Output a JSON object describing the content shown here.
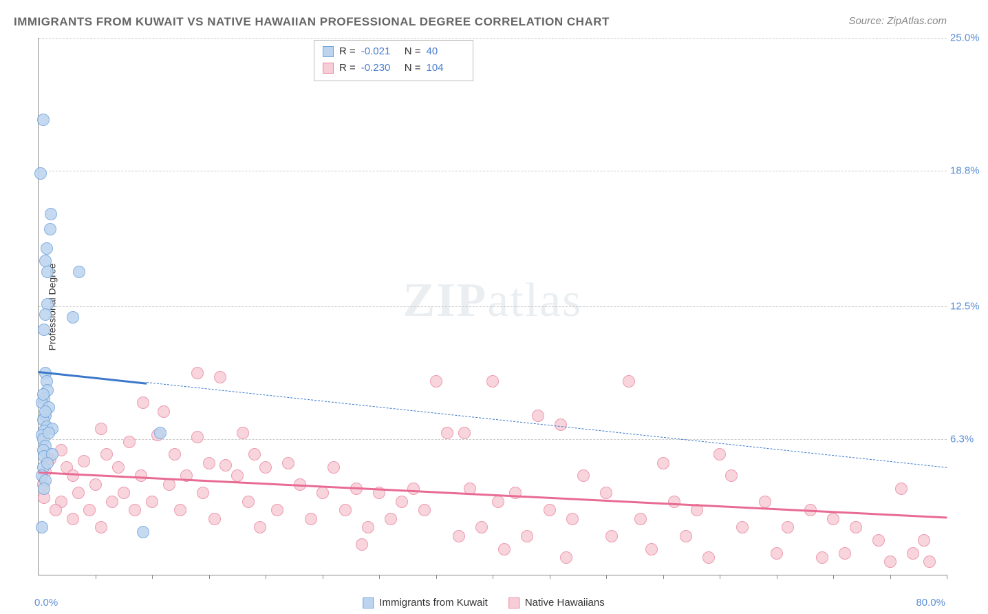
{
  "title": "IMMIGRANTS FROM KUWAIT VS NATIVE HAWAIIAN PROFESSIONAL DEGREE CORRELATION CHART",
  "source": "Source: ZipAtlas.com",
  "watermark_part1": "ZIP",
  "watermark_part2": "atlas",
  "chart": {
    "type": "scatter",
    "y_axis_title": "Professional Degree",
    "xlim": [
      0,
      80
    ],
    "ylim": [
      0,
      25
    ],
    "x_origin_label": "0.0%",
    "x_max_label": "80.0%",
    "y_ticks": [
      {
        "v": 6.3,
        "label": "6.3%"
      },
      {
        "v": 12.5,
        "label": "12.5%"
      },
      {
        "v": 18.8,
        "label": "18.8%"
      },
      {
        "v": 25.0,
        "label": "25.0%"
      }
    ],
    "x_tick_step": 5,
    "background_color": "#ffffff",
    "grid_color": "#cccccc",
    "axis_color": "#888888",
    "label_color": "#5b8dd6",
    "marker_radius": 9,
    "marker_stroke_width": 1.5,
    "series": [
      {
        "name": "Immigrants from Kuwait",
        "fill": "#bcd4ee",
        "stroke": "#6fa3dd",
        "R": "-0.021",
        "N": "40",
        "trend": {
          "color": "#3b78c9",
          "solid_width": 3,
          "dash_width": 1.5,
          "solid_until_x": 9.5,
          "y_at_x0": 9.5,
          "y_at_xmax": 5.0
        },
        "points": [
          [
            0.4,
            21.2
          ],
          [
            0.2,
            18.7
          ],
          [
            1.1,
            16.8
          ],
          [
            1.0,
            16.1
          ],
          [
            0.7,
            15.2
          ],
          [
            0.6,
            14.6
          ],
          [
            0.8,
            14.1
          ],
          [
            3.6,
            14.1
          ],
          [
            0.8,
            12.6
          ],
          [
            0.6,
            12.1
          ],
          [
            3.0,
            12.0
          ],
          [
            0.5,
            11.4
          ],
          [
            0.6,
            9.4
          ],
          [
            0.7,
            9.0
          ],
          [
            0.8,
            8.6
          ],
          [
            0.5,
            8.2
          ],
          [
            0.3,
            8.0
          ],
          [
            0.9,
            7.8
          ],
          [
            0.6,
            7.4
          ],
          [
            0.4,
            7.2
          ],
          [
            0.7,
            6.9
          ],
          [
            1.2,
            6.8
          ],
          [
            0.5,
            6.7
          ],
          [
            0.3,
            6.5
          ],
          [
            0.4,
            6.3
          ],
          [
            0.9,
            6.6
          ],
          [
            10.7,
            6.6
          ],
          [
            0.6,
            6.0
          ],
          [
            0.4,
            5.8
          ],
          [
            0.5,
            5.5
          ],
          [
            1.2,
            5.6
          ],
          [
            0.4,
            5.0
          ],
          [
            0.3,
            4.6
          ],
          [
            0.6,
            4.4
          ],
          [
            0.5,
            4.0
          ],
          [
            0.3,
            2.2
          ],
          [
            9.2,
            2.0
          ],
          [
            0.4,
            8.4
          ],
          [
            0.6,
            7.6
          ],
          [
            0.8,
            5.2
          ]
        ]
      },
      {
        "name": "Native Hawaiians",
        "fill": "#f7cdd7",
        "stroke": "#e98aa4",
        "R": "-0.230",
        "N": "104",
        "trend": {
          "color": "#e86b94",
          "solid_width": 3,
          "dash_width": 0,
          "solid_until_x": 80,
          "y_at_x0": 4.8,
          "y_at_xmax": 2.7
        },
        "points": [
          [
            14.0,
            9.4
          ],
          [
            16.0,
            9.2
          ],
          [
            35.0,
            9.0
          ],
          [
            40.0,
            9.0
          ],
          [
            52.0,
            9.0
          ],
          [
            9.2,
            8.0
          ],
          [
            11.0,
            7.6
          ],
          [
            44.0,
            7.4
          ],
          [
            5.5,
            6.8
          ],
          [
            18.0,
            6.6
          ],
          [
            36.0,
            6.6
          ],
          [
            37.5,
            6.6
          ],
          [
            10.5,
            6.5
          ],
          [
            14.0,
            6.4
          ],
          [
            8.0,
            6.2
          ],
          [
            46.0,
            7.0
          ],
          [
            2.0,
            5.8
          ],
          [
            6.0,
            5.6
          ],
          [
            12.0,
            5.6
          ],
          [
            19.0,
            5.6
          ],
          [
            1.0,
            5.4
          ],
          [
            4.0,
            5.3
          ],
          [
            15.0,
            5.2
          ],
          [
            22.0,
            5.2
          ],
          [
            60.0,
            5.6
          ],
          [
            16.5,
            5.1
          ],
          [
            2.5,
            5.0
          ],
          [
            7.0,
            5.0
          ],
          [
            20.0,
            5.0
          ],
          [
            26.0,
            5.0
          ],
          [
            55.0,
            5.2
          ],
          [
            3.0,
            4.6
          ],
          [
            9.0,
            4.6
          ],
          [
            13.0,
            4.6
          ],
          [
            17.5,
            4.6
          ],
          [
            48.0,
            4.6
          ],
          [
            61.0,
            4.6
          ],
          [
            5.0,
            4.2
          ],
          [
            11.5,
            4.2
          ],
          [
            23.0,
            4.2
          ],
          [
            28.0,
            4.0
          ],
          [
            33.0,
            4.0
          ],
          [
            38.0,
            4.0
          ],
          [
            76.0,
            4.0
          ],
          [
            3.5,
            3.8
          ],
          [
            7.5,
            3.8
          ],
          [
            14.5,
            3.8
          ],
          [
            25.0,
            3.8
          ],
          [
            30.0,
            3.8
          ],
          [
            42.0,
            3.8
          ],
          [
            50.0,
            3.8
          ],
          [
            2.0,
            3.4
          ],
          [
            6.5,
            3.4
          ],
          [
            10.0,
            3.4
          ],
          [
            18.5,
            3.4
          ],
          [
            32.0,
            3.4
          ],
          [
            40.5,
            3.4
          ],
          [
            56.0,
            3.4
          ],
          [
            64.0,
            3.4
          ],
          [
            1.5,
            3.0
          ],
          [
            4.5,
            3.0
          ],
          [
            8.5,
            3.0
          ],
          [
            12.5,
            3.0
          ],
          [
            21.0,
            3.0
          ],
          [
            27.0,
            3.0
          ],
          [
            34.0,
            3.0
          ],
          [
            45.0,
            3.0
          ],
          [
            58.0,
            3.0
          ],
          [
            68.0,
            3.0
          ],
          [
            3.0,
            2.6
          ],
          [
            15.5,
            2.6
          ],
          [
            24.0,
            2.6
          ],
          [
            31.0,
            2.6
          ],
          [
            47.0,
            2.6
          ],
          [
            53.0,
            2.6
          ],
          [
            70.0,
            2.6
          ],
          [
            5.5,
            2.2
          ],
          [
            19.5,
            2.2
          ],
          [
            29.0,
            2.2
          ],
          [
            39.0,
            2.2
          ],
          [
            62.0,
            2.2
          ],
          [
            66.0,
            2.2
          ],
          [
            72.0,
            2.2
          ],
          [
            37.0,
            1.8
          ],
          [
            43.0,
            1.8
          ],
          [
            50.5,
            1.8
          ],
          [
            57.0,
            1.8
          ],
          [
            74.0,
            1.6
          ],
          [
            78.0,
            1.6
          ],
          [
            28.5,
            1.4
          ],
          [
            41.0,
            1.2
          ],
          [
            54.0,
            1.2
          ],
          [
            65.0,
            1.0
          ],
          [
            71.0,
            1.0
          ],
          [
            77.0,
            1.0
          ],
          [
            46.5,
            0.8
          ],
          [
            59.0,
            0.8
          ],
          [
            69.0,
            0.8
          ],
          [
            75.0,
            0.6
          ],
          [
            78.5,
            0.6
          ],
          [
            0.8,
            5.4
          ],
          [
            0.6,
            4.8
          ],
          [
            0.4,
            4.2
          ],
          [
            0.5,
            3.6
          ]
        ]
      }
    ]
  },
  "legend": {
    "items": [
      {
        "label": "Immigrants from Kuwait",
        "fill": "#bcd4ee",
        "stroke": "#6fa3dd"
      },
      {
        "label": "Native Hawaiians",
        "fill": "#f7cdd7",
        "stroke": "#e98aa4"
      }
    ]
  }
}
